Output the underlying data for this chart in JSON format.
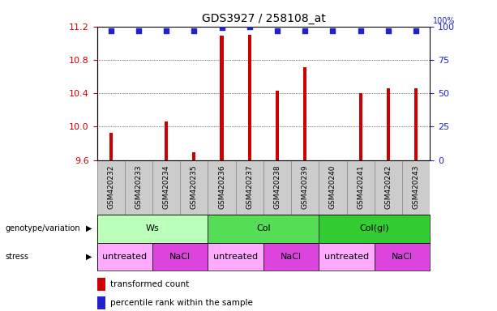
{
  "title": "GDS3927 / 258108_at",
  "samples": [
    "GSM420232",
    "GSM420233",
    "GSM420234",
    "GSM420235",
    "GSM420236",
    "GSM420237",
    "GSM420238",
    "GSM420239",
    "GSM420240",
    "GSM420241",
    "GSM420242",
    "GSM420243"
  ],
  "bar_values": [
    9.93,
    9.6,
    10.06,
    9.69,
    11.09,
    11.1,
    10.43,
    10.71,
    9.6,
    10.4,
    10.46,
    10.46
  ],
  "dot_values": [
    97,
    97,
    97,
    97,
    99,
    100,
    97,
    97,
    97,
    97,
    97,
    97
  ],
  "ylim_left": [
    9.6,
    11.2
  ],
  "ylim_right": [
    0,
    100
  ],
  "yticks_left": [
    9.6,
    10.0,
    10.4,
    10.8,
    11.2
  ],
  "yticks_right": [
    0,
    25,
    50,
    75,
    100
  ],
  "bar_color": "#cc0000",
  "dot_color": "#2222cc",
  "grid_color": "#888888",
  "sample_box_color": "#cccccc",
  "genotype_groups": [
    {
      "label": "Ws",
      "start": 0,
      "end": 4,
      "color": "#bbffbb"
    },
    {
      "label": "Col",
      "start": 4,
      "end": 8,
      "color": "#55dd55"
    },
    {
      "label": "Col(gl)",
      "start": 8,
      "end": 12,
      "color": "#33cc33"
    }
  ],
  "stress_groups": [
    {
      "label": "untreated",
      "start": 0,
      "end": 2,
      "color": "#ffaaff"
    },
    {
      "label": "NaCl",
      "start": 2,
      "end": 4,
      "color": "#dd44dd"
    },
    {
      "label": "untreated",
      "start": 4,
      "end": 6,
      "color": "#ffaaff"
    },
    {
      "label": "NaCl",
      "start": 6,
      "end": 8,
      "color": "#dd44dd"
    },
    {
      "label": "untreated",
      "start": 8,
      "end": 10,
      "color": "#ffaaff"
    },
    {
      "label": "NaCl",
      "start": 10,
      "end": 12,
      "color": "#dd44dd"
    }
  ],
  "legend_red_label": "transformed count",
  "legend_blue_label": "percentile rank within the sample",
  "left_axis_color": "#cc0000",
  "right_axis_color": "#2222cc"
}
